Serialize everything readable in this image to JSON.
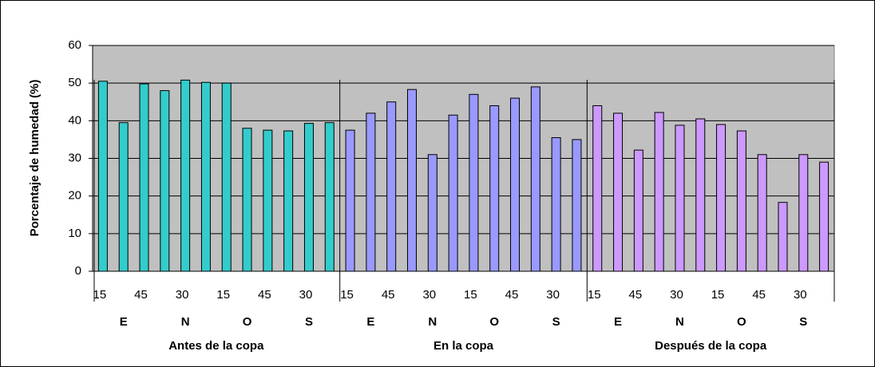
{
  "chart_data": {
    "type": "bar",
    "y_label": "Porcentaje de humedad (%)",
    "categories": [
      "15",
      null,
      "45",
      null,
      "30",
      null,
      "15",
      null,
      "45",
      null,
      "30",
      null
    ],
    "months": [
      "E",
      "N",
      "O",
      "S"
    ],
    "series": [
      {
        "name": "Antes de la copa",
        "color": "#33cccc",
        "values": [
          50.5,
          39.5,
          49.8,
          48,
          50.8,
          50.2,
          50,
          38,
          37.5,
          37.3,
          39.3,
          39.5
        ]
      },
      {
        "name": "En la copa",
        "color": "#9999ff",
        "values": [
          37.5,
          42,
          45,
          48.3,
          31,
          41.5,
          47,
          44,
          46,
          49,
          35.5,
          35
        ]
      },
      {
        "name": "Después de la copa",
        "color": "#cc99ff",
        "values": [
          44,
          42,
          32.2,
          42.2,
          38.8,
          40.5,
          39,
          37.3,
          31,
          18.3,
          31,
          29
        ]
      }
    ],
    "ylim": [
      0,
      60
    ],
    "yticks": [
      0,
      10,
      20,
      30,
      40,
      50,
      60
    ],
    "grid": true
  }
}
